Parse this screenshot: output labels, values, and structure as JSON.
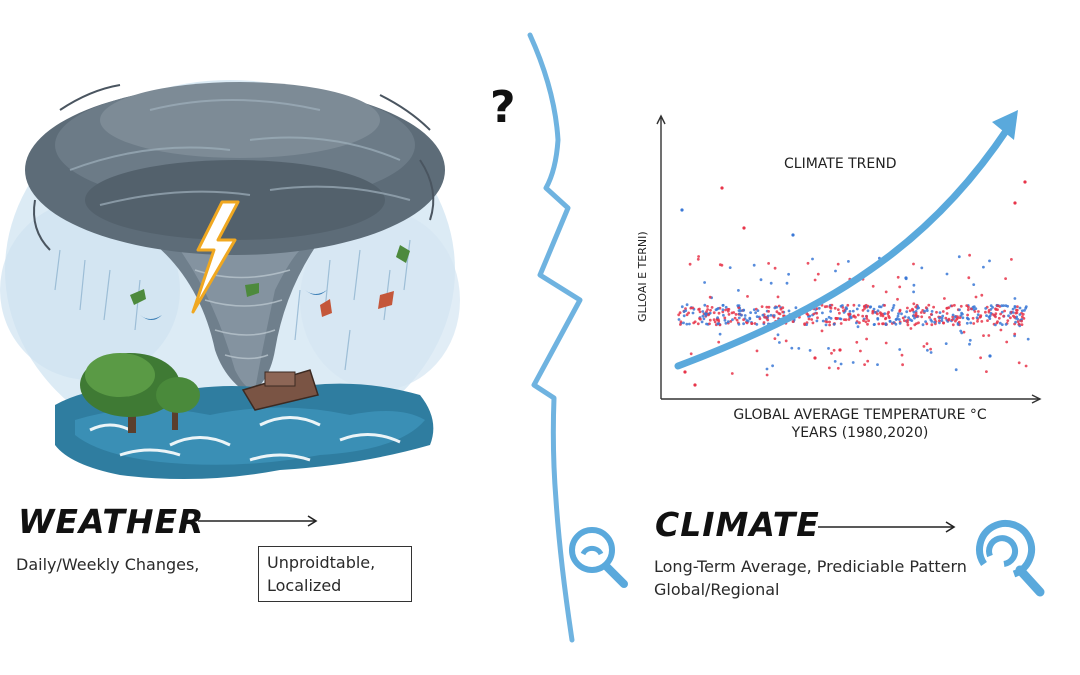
{
  "weather": {
    "title": "WEATHER",
    "arrow": "arrow-right",
    "description": "Daily/Weekly Changes,",
    "boxed_note_line1": "Unproidtable,",
    "boxed_note_line2": "Localized",
    "illustration": "tornado-storm-over-sea"
  },
  "divider": {
    "question_mark": "?",
    "color": "#6fb3e0"
  },
  "climate": {
    "title": "CLIMATE",
    "arrow": "arrow-right",
    "description_line1": "Long-Term Average, Prediciable Pattern",
    "description_line2": "Global/Regional",
    "icons": [
      "magnifier-icon",
      "magnifier-icon"
    ]
  },
  "chart": {
    "title": "CLIMATE TREND",
    "ylabel": "GLLOAI E TERNI)",
    "xlabel_line1": "GLOBAL AVERAGE TEMPERATURE °C",
    "xlabel_line2": "YEARS (1980,2020)"
  },
  "colors": {
    "accent_blue": "#5aa9dc",
    "point_red": "#e8354a",
    "point_blue": "#3a78d6"
  },
  "chart_data": {
    "type": "scatter",
    "title": "CLIMATE TREND",
    "xlabel": "GLOBAL AVERAGE TEMPERATURE °C / YEARS (1980,2020)",
    "ylabel": "GLLOAI E TERNI)",
    "x_range": [
      1980,
      2020
    ],
    "series": [
      {
        "name": "red points",
        "color": "#e8354a",
        "description": "dense band around mid-level with scattered outliers"
      },
      {
        "name": "blue points",
        "color": "#3a78d6",
        "description": "dense band around mid-level with scattered outliers"
      },
      {
        "name": "trend arrow",
        "type": "line",
        "color": "#5aa9dc",
        "description": "exponentially rising curve from lower-left to upper-right"
      }
    ],
    "grid": false,
    "legend": "none"
  }
}
